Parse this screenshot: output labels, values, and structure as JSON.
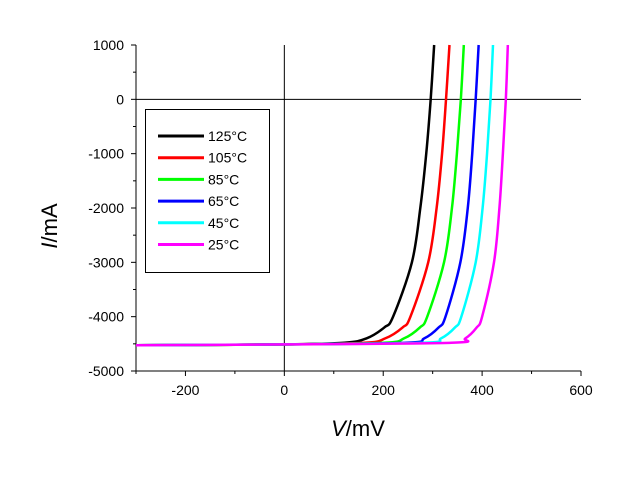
{
  "chart_data": {
    "type": "line",
    "title": "",
    "xlabel": {
      "symbol": "V",
      "unit": "/mV"
    },
    "ylabel": {
      "symbol": "I",
      "unit": "/mA"
    },
    "xlim": [
      -300,
      600
    ],
    "ylim": [
      -5000,
      1000
    ],
    "xticks": [
      -200,
      0,
      200,
      400,
      600
    ],
    "yticks": [
      1000,
      0,
      -1000,
      -2000,
      -3000,
      -4000,
      -5000
    ],
    "grid": false,
    "zero_lines": true,
    "legend_position": "upper-left",
    "series": [
      {
        "name": "125°C",
        "color": "#000000",
        "points": [
          [
            -300,
            -4525
          ],
          [
            0,
            -4510
          ],
          [
            121,
            -4480
          ],
          [
            166,
            -4400
          ],
          [
            202,
            -4200
          ],
          [
            220,
            -4000
          ],
          [
            258,
            -3000
          ],
          [
            275,
            -2000
          ],
          [
            287,
            -1000
          ],
          [
            296,
            0
          ],
          [
            303,
            1000
          ]
        ]
      },
      {
        "name": "105°C",
        "color": "#ff0000",
        "points": [
          [
            -300,
            -4525
          ],
          [
            0,
            -4510
          ],
          [
            162,
            -4480
          ],
          [
            204,
            -4400
          ],
          [
            239,
            -4200
          ],
          [
            255,
            -4000
          ],
          [
            291,
            -3000
          ],
          [
            308,
            -2000
          ],
          [
            319,
            -1000
          ],
          [
            327,
            0
          ],
          [
            334,
            1000
          ]
        ]
      },
      {
        "name": "85°C",
        "color": "#00ff00",
        "points": [
          [
            -300,
            -4525
          ],
          [
            0,
            -4510
          ],
          [
            202,
            -4480
          ],
          [
            242,
            -4400
          ],
          [
            274,
            -4200
          ],
          [
            289,
            -4000
          ],
          [
            323,
            -3000
          ],
          [
            339,
            -2000
          ],
          [
            349,
            -1000
          ],
          [
            357,
            0
          ],
          [
            363,
            1000
          ]
        ]
      },
      {
        "name": "65°C",
        "color": "#0000ff",
        "points": [
          [
            -300,
            -4525
          ],
          [
            0,
            -4510
          ],
          [
            247,
            -4480
          ],
          [
            283,
            -4400
          ],
          [
            312,
            -4200
          ],
          [
            326,
            -4000
          ],
          [
            356,
            -3000
          ],
          [
            371,
            -2000
          ],
          [
            380,
            -1000
          ],
          [
            387,
            0
          ],
          [
            393,
            1000
          ]
        ]
      },
      {
        "name": "45°C",
        "color": "#00ffff",
        "points": [
          [
            -300,
            -4525
          ],
          [
            0,
            -4510
          ],
          [
            282,
            -4480
          ],
          [
            317,
            -4400
          ],
          [
            345,
            -4200
          ],
          [
            358,
            -4000
          ],
          [
            387,
            -3000
          ],
          [
            401,
            -2000
          ],
          [
            410,
            -1000
          ],
          [
            417,
            0
          ],
          [
            422,
            1000
          ]
        ]
      },
      {
        "name": "25°C",
        "color": "#ff00ff",
        "points": [
          [
            -300,
            -4525
          ],
          [
            0,
            -4510
          ],
          [
            338,
            -4480
          ],
          [
            366,
            -4400
          ],
          [
            389,
            -4200
          ],
          [
            400,
            -4000
          ],
          [
            424,
            -3000
          ],
          [
            435,
            -2000
          ],
          [
            442,
            -1000
          ],
          [
            448,
            0
          ],
          [
            452,
            1000
          ]
        ]
      }
    ]
  }
}
